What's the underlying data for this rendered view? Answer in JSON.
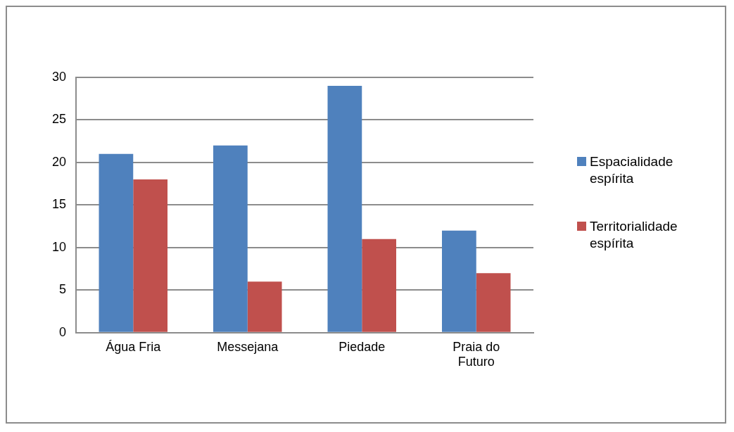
{
  "chart_data": {
    "type": "bar",
    "categories": [
      "Água Fria",
      "Messejana",
      "Piedade",
      "Praia do Futuro"
    ],
    "series": [
      {
        "name": "Espacialidade espírita",
        "color": "#4f81bd",
        "values": [
          21,
          22,
          29,
          12
        ]
      },
      {
        "name": "Territorialidade espírita",
        "color": "#c0504d",
        "values": [
          18,
          6,
          11,
          7
        ]
      }
    ],
    "ylim": [
      0,
      30
    ],
    "yticks": [
      0,
      5,
      10,
      15,
      20,
      25,
      30
    ],
    "grid": "y",
    "legend": "right"
  }
}
